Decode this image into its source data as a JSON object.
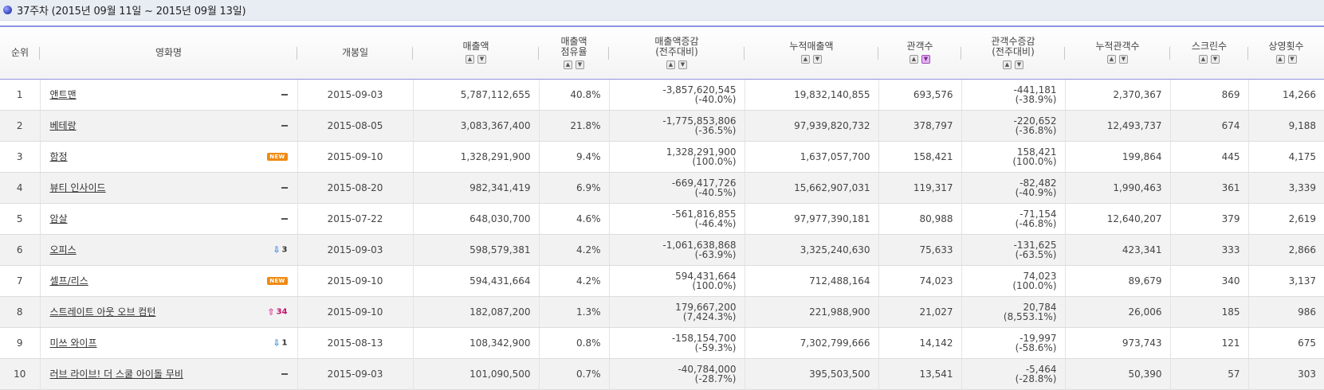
{
  "title": "37주차 (2015년 09월 11일 ~ 2015년 09월 13일)",
  "headers": {
    "rank": "순위",
    "movie": "영화명",
    "open_date": "개봉일",
    "sales": "매출액",
    "share_1": "매출액",
    "share_2": "점유율",
    "sales_change_1": "매출액증감",
    "sales_change_2": "(전주대비)",
    "cum_sales": "누적매출액",
    "audience": "관객수",
    "aud_change_1": "관객수증감",
    "aud_change_2": "(전주대비)",
    "cum_audience": "누적관객수",
    "screens": "스크린수",
    "showings": "상영횟수"
  },
  "sort_icons": {
    "up": "sort-up-icon",
    "down": "sort-down-icon",
    "active_column": "audience",
    "active_direction": "down"
  },
  "colors": {
    "header_border": "#8f95e0",
    "new_badge": "#f08a12",
    "rank_down": "#2f7fe0",
    "rank_up": "#e0208a"
  },
  "rows": [
    {
      "rank": "1",
      "movie": "앤트맨",
      "status": "same",
      "status_label": "",
      "open_date": "2015-09-03",
      "sales": "5,787,112,655",
      "share": "40.8%",
      "sales_change": "-3,857,620,545",
      "sales_change_pct": "(-40.0%)",
      "cum_sales": "19,832,140,855",
      "audience": "693,576",
      "aud_change": "-441,181",
      "aud_change_pct": "(-38.9%)",
      "cum_audience": "2,370,367",
      "screens": "869",
      "showings": "14,266"
    },
    {
      "rank": "2",
      "movie": "베테랑",
      "status": "same",
      "status_label": "",
      "open_date": "2015-08-05",
      "sales": "3,083,367,400",
      "share": "21.8%",
      "sales_change": "-1,775,853,806",
      "sales_change_pct": "(-36.5%)",
      "cum_sales": "97,939,820,732",
      "audience": "378,797",
      "aud_change": "-220,652",
      "aud_change_pct": "(-36.8%)",
      "cum_audience": "12,493,737",
      "screens": "674",
      "showings": "9,188"
    },
    {
      "rank": "3",
      "movie": "함정",
      "status": "new",
      "status_label": "NEW",
      "open_date": "2015-09-10",
      "sales": "1,328,291,900",
      "share": "9.4%",
      "sales_change": "1,328,291,900",
      "sales_change_pct": "(100.0%)",
      "cum_sales": "1,637,057,700",
      "audience": "158,421",
      "aud_change": "158,421",
      "aud_change_pct": "(100.0%)",
      "cum_audience": "199,864",
      "screens": "445",
      "showings": "4,175"
    },
    {
      "rank": "4",
      "movie": "뷰티 인사이드",
      "status": "same",
      "status_label": "",
      "open_date": "2015-08-20",
      "sales": "982,341,419",
      "share": "6.9%",
      "sales_change": "-669,417,726",
      "sales_change_pct": "(-40.5%)",
      "cum_sales": "15,662,907,031",
      "audience": "119,317",
      "aud_change": "-82,482",
      "aud_change_pct": "(-40.9%)",
      "cum_audience": "1,990,463",
      "screens": "361",
      "showings": "3,339"
    },
    {
      "rank": "5",
      "movie": "암살",
      "status": "same",
      "status_label": "",
      "open_date": "2015-07-22",
      "sales": "648,030,700",
      "share": "4.6%",
      "sales_change": "-561,816,855",
      "sales_change_pct": "(-46.4%)",
      "cum_sales": "97,977,390,181",
      "audience": "80,988",
      "aud_change": "-71,154",
      "aud_change_pct": "(-46.8%)",
      "cum_audience": "12,640,207",
      "screens": "379",
      "showings": "2,619"
    },
    {
      "rank": "6",
      "movie": "오피스",
      "status": "down",
      "status_label": "3",
      "open_date": "2015-09-03",
      "sales": "598,579,381",
      "share": "4.2%",
      "sales_change": "-1,061,638,868",
      "sales_change_pct": "(-63.9%)",
      "cum_sales": "3,325,240,630",
      "audience": "75,633",
      "aud_change": "-131,625",
      "aud_change_pct": "(-63.5%)",
      "cum_audience": "423,341",
      "screens": "333",
      "showings": "2,866"
    },
    {
      "rank": "7",
      "movie": "셀프/리스",
      "status": "new",
      "status_label": "NEW",
      "open_date": "2015-09-10",
      "sales": "594,431,664",
      "share": "4.2%",
      "sales_change": "594,431,664",
      "sales_change_pct": "(100.0%)",
      "cum_sales": "712,488,164",
      "audience": "74,023",
      "aud_change": "74,023",
      "aud_change_pct": "(100.0%)",
      "cum_audience": "89,679",
      "screens": "340",
      "showings": "3,137"
    },
    {
      "rank": "8",
      "movie": "스트레이트 아웃 오브 컴턴",
      "status": "up",
      "status_label": "34",
      "open_date": "2015-09-10",
      "sales": "182,087,200",
      "share": "1.3%",
      "sales_change": "179,667,200",
      "sales_change_pct": "(7,424.3%)",
      "cum_sales": "221,988,900",
      "audience": "21,027",
      "aud_change": "20,784",
      "aud_change_pct": "(8,553.1%)",
      "cum_audience": "26,006",
      "screens": "185",
      "showings": "986"
    },
    {
      "rank": "9",
      "movie": "미쓰 와이프",
      "status": "down",
      "status_label": "1",
      "open_date": "2015-08-13",
      "sales": "108,342,900",
      "share": "0.8%",
      "sales_change": "-158,154,700",
      "sales_change_pct": "(-59.3%)",
      "cum_sales": "7,302,799,666",
      "audience": "14,142",
      "aud_change": "-19,997",
      "aud_change_pct": "(-58.6%)",
      "cum_audience": "973,743",
      "screens": "121",
      "showings": "675"
    },
    {
      "rank": "10",
      "movie": "러브 라이브! 더 스쿨 아이돌 무비",
      "status": "same",
      "status_label": "",
      "open_date": "2015-09-03",
      "sales": "101,090,500",
      "share": "0.7%",
      "sales_change": "-40,784,000",
      "sales_change_pct": "(-28.7%)",
      "cum_sales": "395,503,500",
      "audience": "13,541",
      "aud_change": "-5,464",
      "aud_change_pct": "(-28.8%)",
      "cum_audience": "50,390",
      "screens": "57",
      "showings": "303"
    }
  ]
}
